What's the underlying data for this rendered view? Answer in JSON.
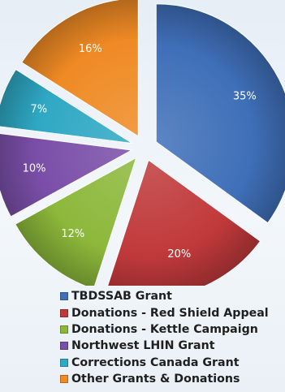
{
  "chart_data": {
    "type": "pie",
    "title": "",
    "categories": [
      "TBDSSAB Grant",
      "Donations - Red Shield Appeal",
      "Donations - Kettle Campaign",
      "Northwest LHIN Grant",
      "Corrections Canada Grant",
      "Other Grants & Donations"
    ],
    "values": [
      35,
      20,
      12,
      10,
      7,
      16
    ],
    "data_labels": [
      "35%",
      "20%",
      "12%",
      "10%",
      "7%",
      "16%"
    ],
    "colors": [
      "#3f6fb8",
      "#c0393a",
      "#8cb83a",
      "#7a4ea8",
      "#2fa8c4",
      "#ef8a24"
    ],
    "exploded": true,
    "legend_position": "bottom"
  }
}
